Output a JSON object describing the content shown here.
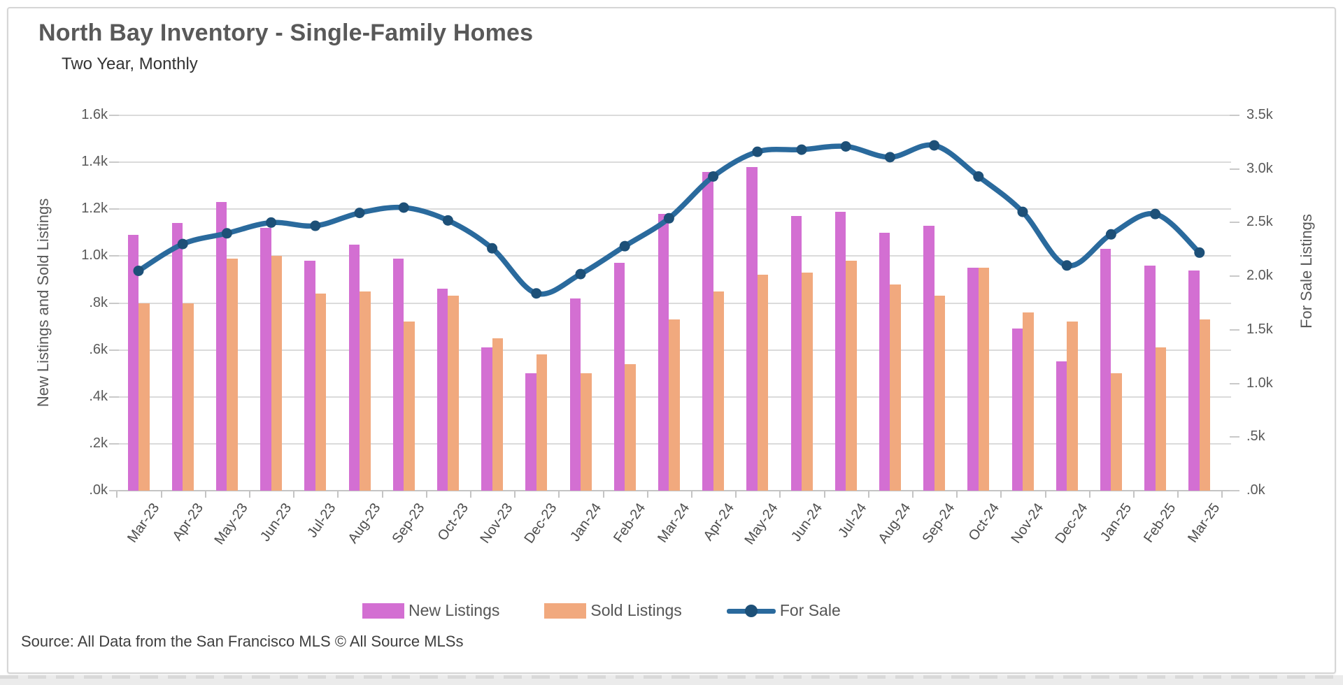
{
  "header": {
    "title": "North Bay Inventory - Single-Family Homes",
    "subtitle": "Two Year, Monthly"
  },
  "source_note": "Source: All Data from the San Francisco MLS © All Source MLSs",
  "legend": {
    "items": [
      {
        "label": "New Listings",
        "color": "#d36fd2",
        "kind": "bar"
      },
      {
        "label": "Sold Listings",
        "color": "#f1a97e",
        "kind": "bar"
      },
      {
        "label": "For Sale",
        "color": "#2a6a9d",
        "kind": "line"
      }
    ],
    "position": "bottom"
  },
  "chart_data": {
    "type": "combo (bar + line)",
    "title": "North Bay Inventory - Single-Family Homes",
    "subtitle": "Two Year, Monthly",
    "grid": true,
    "legend_position": "bottom",
    "categories": [
      "Mar-23",
      "Apr-23",
      "May-23",
      "Jun-23",
      "Jul-23",
      "Aug-23",
      "Sep-23",
      "Oct-23",
      "Nov-23",
      "Dec-23",
      "Jan-24",
      "Feb-24",
      "Mar-24",
      "Apr-24",
      "May-24",
      "Jun-24",
      "Jul-24",
      "Aug-24",
      "Sep-24",
      "Oct-24",
      "Nov-24",
      "Dec-24",
      "Jan-25",
      "Feb-25",
      "Mar-25"
    ],
    "series": [
      {
        "name": "New Listings",
        "kind": "bar",
        "axis": "left",
        "color": "#d36fd2",
        "values_k": [
          1.09,
          1.14,
          1.23,
          1.12,
          0.98,
          1.05,
          0.99,
          0.86,
          0.61,
          0.5,
          0.82,
          0.97,
          1.18,
          1.36,
          1.38,
          1.17,
          1.19,
          1.1,
          1.13,
          0.95,
          0.69,
          0.55,
          1.03,
          0.96,
          0.94
        ]
      },
      {
        "name": "Sold Listings",
        "kind": "bar",
        "axis": "left",
        "color": "#f1a97e",
        "values_k": [
          0.8,
          0.8,
          0.99,
          1.0,
          0.84,
          0.85,
          0.72,
          0.83,
          0.65,
          0.58,
          0.5,
          0.54,
          0.73,
          0.85,
          0.92,
          0.93,
          0.98,
          0.88,
          0.83,
          0.95,
          0.76,
          0.72,
          0.5,
          0.61,
          0.73
        ]
      },
      {
        "name": "For Sale",
        "kind": "line",
        "axis": "right",
        "color": "#2a6a9d",
        "marker_color": "#1d5078",
        "values_k": [
          2.05,
          2.3,
          2.4,
          2.5,
          2.47,
          2.59,
          2.64,
          2.52,
          2.26,
          1.84,
          2.02,
          2.28,
          2.54,
          2.93,
          3.16,
          3.18,
          3.21,
          3.11,
          3.22,
          2.93,
          2.6,
          2.1,
          2.39,
          2.58,
          2.22
        ]
      }
    ],
    "left_axis": {
      "title": "New Listings and Sold Listings",
      "range_k": [
        0,
        1.6
      ],
      "tick_labels": [
        "1.6k",
        "1.4k",
        "1.2k",
        "1.0k",
        ".8k",
        ".6k",
        ".4k",
        ".2k",
        ".0k"
      ],
      "tick_values_k": [
        1.6,
        1.4,
        1.2,
        1.0,
        0.8,
        0.6,
        0.4,
        0.2,
        0.0
      ]
    },
    "right_axis": {
      "title": "For Sale Listings",
      "range_k": [
        0,
        3.5
      ],
      "tick_labels": [
        "3.5k",
        "3.0k",
        "2.5k",
        "2.0k",
        "1.5k",
        "1.0k",
        ".5k",
        ".0k"
      ],
      "tick_values_k": [
        3.5,
        3.0,
        2.5,
        2.0,
        1.5,
        1.0,
        0.5,
        0.0
      ]
    }
  }
}
